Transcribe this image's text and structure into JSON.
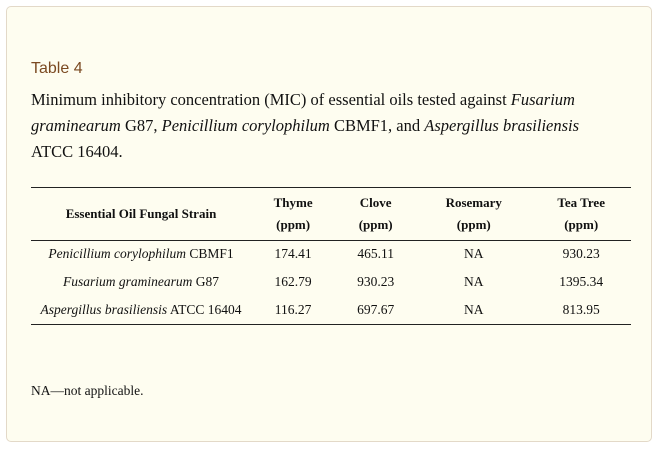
{
  "table_label": "Table 4",
  "caption": {
    "p1": "Minimum inhibitory concentration (MIC) of essential oils tested against ",
    "i1": "Fusarium graminearum",
    "p2": " G87, ",
    "i2": "Penicillium corylophilum",
    "p3": " CBMF1, and ",
    "i3": "Aspergillus brasiliensis",
    "p4": " ATCC 16404."
  },
  "table": {
    "headers": {
      "strain": "Essential Oil Fungal Strain",
      "cols": [
        {
          "name": "Thyme",
          "unit": "(ppm)"
        },
        {
          "name": "Clove",
          "unit": "(ppm)"
        },
        {
          "name": "Rosemary",
          "unit": "(ppm)"
        },
        {
          "name": "Tea Tree",
          "unit": "(ppm)"
        }
      ]
    },
    "rows": [
      {
        "species": "Penicillium corylophilum",
        "code": " CBMF1",
        "values": [
          "174.41",
          "465.11",
          "NA",
          "930.23"
        ]
      },
      {
        "species": "Fusarium graminearum",
        "code": " G87",
        "values": [
          "162.79",
          "930.23",
          "NA",
          "1395.34"
        ]
      },
      {
        "species": "Aspergillus brasiliensis",
        "code": " ATCC 16404",
        "values": [
          "116.27",
          "697.67",
          "NA",
          "813.95"
        ]
      }
    ]
  },
  "footnote": "NA—not applicable."
}
